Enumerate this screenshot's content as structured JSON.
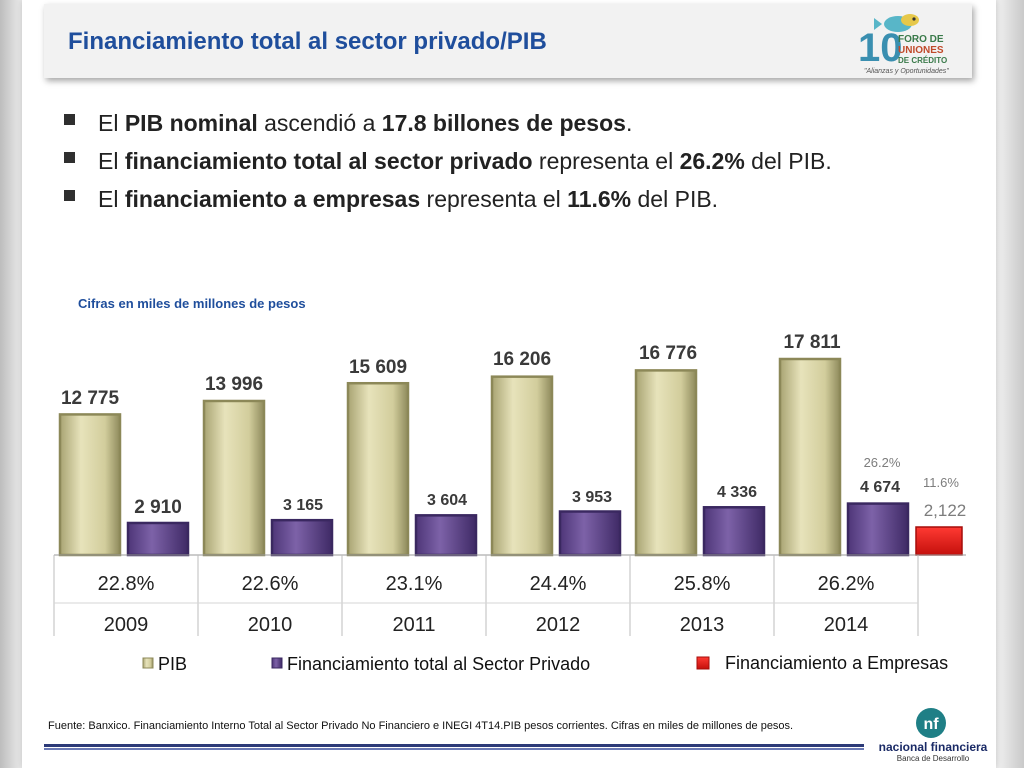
{
  "title": "Financiamiento total al sector privado/PIB",
  "logo_foro": {
    "number": "10",
    "line1": "FORO DE",
    "line2": "UNIONES",
    "line3": "DE CRÉDITO",
    "tagline": "\"Alianzas y Oportunidades\""
  },
  "bullets": [
    {
      "parts": [
        {
          "t": "El ",
          "b": false
        },
        {
          "t": "PIB nominal",
          "b": true
        },
        {
          "t": " ascendió a ",
          "b": false
        },
        {
          "t": "17.8 billones de pesos",
          "b": true
        },
        {
          "t": ".",
          "b": false
        }
      ]
    },
    {
      "parts": [
        {
          "t": "El ",
          "b": false
        },
        {
          "t": "financiamiento total al sector privado",
          "b": true
        },
        {
          "t": " representa el ",
          "b": false
        },
        {
          "t": "26.2%",
          "b": true
        },
        {
          "t": " del PIB.",
          "b": false
        }
      ]
    },
    {
      "parts": [
        {
          "t": "El ",
          "b": false
        },
        {
          "t": "financiamiento a empresas",
          "b": true
        },
        {
          "t": " representa el ",
          "b": false
        },
        {
          "t": "11.6%",
          "b": true
        },
        {
          "t": " del PIB.",
          "b": false
        }
      ]
    }
  ],
  "chart_subtitle": "Cifras en miles de millones de pesos",
  "chart_data": {
    "type": "bar",
    "categories": [
      "2009",
      "2010",
      "2011",
      "2012",
      "2013",
      "2014"
    ],
    "ratio_row": [
      "22.8%",
      "22.6%",
      "23.1%",
      "24.4%",
      "25.8%",
      "26.2%"
    ],
    "series": [
      {
        "name": "PIB",
        "values": [
          12775,
          13996,
          15609,
          16206,
          16776,
          17811
        ],
        "labels": [
          "12 775",
          "13 996",
          "15 609",
          "16 206",
          "16 776",
          "17 811"
        ],
        "color": "#d8d4a4"
      },
      {
        "name": "Financiamiento total al Sector Privado",
        "values": [
          2910,
          3165,
          3604,
          3953,
          4336,
          4674
        ],
        "labels": [
          "2 910",
          "3 165",
          "3 604",
          "3 953",
          "4 336",
          "4 674"
        ],
        "color": "#6a4f94"
      },
      {
        "name": "Financiamiento a Empresas",
        "values": [
          null,
          null,
          null,
          null,
          null,
          2122
        ],
        "labels": [
          "",
          "",
          "",
          "",
          "",
          "2,122"
        ],
        "color": "#e0201c"
      }
    ],
    "annotations": [
      "26.2%",
      "11.6%"
    ],
    "legend_position": "bottom",
    "grid": false
  },
  "source": "Fuente: Banxico. Financiamiento Interno Total al Sector Privado No Financiero e INEGI  4T14.PIB pesos corrientes. Cifras en miles de millones de pesos.",
  "nafin": {
    "name": "nacional financiera",
    "sub": "Banca de Desarrollo"
  }
}
